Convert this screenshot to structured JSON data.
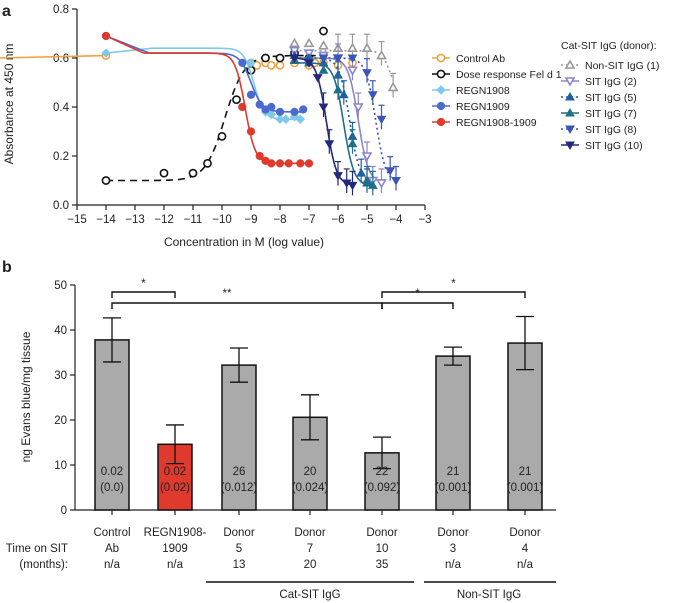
{
  "chart_data": [
    {
      "panel": "a",
      "type": "line",
      "xlabel": "Concentration in M (log value)",
      "ylabel": "Absorbance at 450 nm",
      "xlim": [
        -15,
        -3
      ],
      "ylim": [
        0,
        0.8
      ],
      "xticks": [
        "−15",
        "−14",
        "−13",
        "−12",
        "−11",
        "−10",
        "−9",
        "−8",
        "−7",
        "−6",
        "−5",
        "−4",
        "−3"
      ],
      "yticks": [
        "0.0",
        "0.2",
        "0.4",
        "0.6",
        "0.8"
      ],
      "legend_left": [
        "Control Ab",
        "Dose response Fel d 1",
        "REGN1908",
        "REGN1909",
        "REGN1908-1909"
      ],
      "legend_right_title": "Cat-SIT IgG (donor):",
      "legend_right": [
        "Non-SIT IgG (1)",
        "SIT IgG (2)",
        "SIT IgG (5)",
        "SIT IgG (7)",
        "SIT IgG (8)",
        "SIT IgG (10)"
      ],
      "series": [
        {
          "name": "Control Ab",
          "color": "#f0a040",
          "marker": "circle-open",
          "line": "solid",
          "x": [
            -14,
            -9,
            -8.8,
            -8.5,
            -8.3,
            -8,
            -7.5,
            -7,
            -6.8,
            -6.5,
            -6,
            -5.5
          ],
          "y": [
            0.61,
            0.58,
            0.57,
            0.58,
            0.57,
            0.57,
            0.58,
            0.57,
            0.58,
            0.58,
            0.57,
            0.58
          ],
          "fit": "flat",
          "fitlevel": 0.6
        },
        {
          "name": "Dose response Fel d 1",
          "color": "#111111",
          "marker": "circle-open",
          "line": "dashed",
          "x": [
            -14,
            -12,
            -11,
            -10.5,
            -10,
            -9.5,
            -9,
            -8.5,
            -8,
            -7.5,
            -7,
            -6.5
          ],
          "y": [
            0.1,
            0.13,
            0.13,
            0.17,
            0.28,
            0.43,
            0.55,
            0.6,
            0.6,
            0.62,
            0.6,
            0.71
          ],
          "fit": "rise",
          "bottom": 0.1,
          "top": 0.61,
          "ec50": -9.9,
          "hill": 1.3
        },
        {
          "name": "REGN1908",
          "color": "#7fc8ec",
          "marker": "diamond",
          "line": "solid",
          "x": [
            -14,
            -9,
            -8.5,
            -8.3,
            -8,
            -7.8,
            -7.5,
            -7.3
          ],
          "y": [
            0.62,
            0.58,
            0.38,
            0.37,
            0.35,
            0.35,
            0.36,
            0.35
          ],
          "fit": "drop",
          "top": 0.64,
          "bottom": 0.35,
          "ec50": -8.9,
          "hill": 2.5
        },
        {
          "name": "REGN1909",
          "color": "#4a6ad0",
          "marker": "circle",
          "line": "solid",
          "x": [
            -14,
            -9.3,
            -9,
            -8.7,
            -8.5,
            -8.3,
            -8,
            -7.5,
            -7.2
          ],
          "y": [
            0.69,
            0.58,
            0.45,
            0.41,
            0.39,
            0.4,
            0.38,
            0.38,
            0.39
          ],
          "fit": "drop",
          "top": 0.62,
          "bottom": 0.38,
          "ec50": -9.0,
          "hill": 2.2
        },
        {
          "name": "REGN1908-1909",
          "color": "#e03a2e",
          "marker": "circle",
          "line": "solid",
          "x": [
            -14,
            -9.3,
            -9,
            -8.7,
            -8.5,
            -8.3,
            -8,
            -7.7,
            -7.3,
            -7
          ],
          "y": [
            0.69,
            0.4,
            0.3,
            0.2,
            0.18,
            0.17,
            0.17,
            0.17,
            0.17,
            0.17
          ],
          "fit": "drop",
          "top": 0.62,
          "bottom": 0.17,
          "ec50": -9.2,
          "hill": 2.5
        },
        {
          "name": "Non-SIT IgG (1)",
          "color": "#999999",
          "marker": "triangle-open",
          "line": "dotted",
          "x": [
            -7.5,
            -7,
            -6.5,
            -6,
            -5.5,
            -5,
            -4.5,
            -4.1
          ],
          "y": [
            0.66,
            0.66,
            0.65,
            0.64,
            0.64,
            0.64,
            0.61,
            0.48
          ],
          "fit": "drop",
          "top": 0.63,
          "bottom": 0.45,
          "ec50": -4.2,
          "hill": 3
        },
        {
          "name": "SIT IgG (2)",
          "color": "#8a85cc",
          "marker": "triangle-down-open",
          "line": "solid",
          "x": [
            -7.5,
            -7,
            -6.5,
            -6,
            -5.5,
            -5.3,
            -5,
            -4.8,
            -4.5
          ],
          "y": [
            0.63,
            0.62,
            0.61,
            0.6,
            0.55,
            0.4,
            0.2,
            0.1,
            0.09
          ],
          "fit": "drop",
          "top": 0.6,
          "bottom": 0.09,
          "ec50": -5.3,
          "hill": 2.5
        },
        {
          "name": "SIT IgG (5)",
          "color": "#1f5fa6",
          "marker": "triangle",
          "line": "dotted",
          "x": [
            -7.5,
            -7,
            -6.5,
            -6,
            -5.8,
            -5.5,
            -5.2,
            -5
          ],
          "y": [
            0.61,
            0.6,
            0.58,
            0.53,
            0.45,
            0.28,
            0.13,
            0.09
          ],
          "fit": "drop",
          "top": 0.6,
          "bottom": 0.09,
          "ec50": -5.6,
          "hill": 2.5
        },
        {
          "name": "SIT IgG (7)",
          "color": "#1f6f8a",
          "marker": "triangle",
          "line": "solid",
          "x": [
            -7.5,
            -7,
            -6.5,
            -6,
            -5.5,
            -5,
            -4.8
          ],
          "y": [
            0.59,
            0.58,
            0.55,
            0.47,
            0.25,
            0.1,
            0.08
          ],
          "fit": "drop",
          "top": 0.58,
          "bottom": 0.08,
          "ec50": -5.8,
          "hill": 2.5
        },
        {
          "name": "SIT IgG (8)",
          "color": "#3a55b8",
          "marker": "triangle-down",
          "line": "dotted",
          "x": [
            -6.5,
            -6,
            -5.5,
            -5,
            -4.8,
            -4.5,
            -4.2,
            -4
          ],
          "y": [
            0.6,
            0.6,
            0.6,
            0.54,
            0.45,
            0.35,
            0.14,
            0.1
          ],
          "fit": "drop",
          "top": 0.6,
          "bottom": 0.09,
          "ec50": -4.7,
          "hill": 2.5
        },
        {
          "name": "SIT IgG (10)",
          "color": "#23287a",
          "marker": "triangle-down",
          "line": "solid",
          "x": [
            -7.5,
            -7,
            -6.7,
            -6.5,
            -6.3,
            -6,
            -5.7,
            -5.5
          ],
          "y": [
            0.6,
            0.58,
            0.52,
            0.4,
            0.25,
            0.12,
            0.09,
            0.08
          ],
          "fit": "drop",
          "top": 0.6,
          "bottom": 0.08,
          "ec50": -6.4,
          "hill": 2.5
        }
      ]
    },
    {
      "panel": "b",
      "type": "bar",
      "ylabel": "ng Evans blue/mg tissue",
      "ylim": [
        0,
        50
      ],
      "yticks": [
        "0",
        "10",
        "20",
        "30",
        "40",
        "50"
      ],
      "categories": [
        {
          "line1": "Control",
          "line2": "Ab",
          "time": "n/a",
          "color": "#aaaaaa"
        },
        {
          "line1": "REGN1908-",
          "line2": "1909",
          "time": "n/a",
          "color": "#e03a2e"
        },
        {
          "line1": "Donor",
          "line2": "5",
          "time": "13",
          "color": "#aaaaaa"
        },
        {
          "line1": "Donor",
          "line2": "7",
          "time": "20",
          "color": "#aaaaaa"
        },
        {
          "line1": "Donor",
          "line2": "10",
          "time": "35",
          "color": "#aaaaaa"
        },
        {
          "line1": "Donor",
          "line2": "3",
          "time": "n/a",
          "color": "#aaaaaa"
        },
        {
          "line1": "Donor",
          "line2": "4",
          "time": "n/a",
          "color": "#aaaaaa"
        }
      ],
      "values": [
        37.8,
        14.6,
        32.2,
        20.6,
        12.7,
        34.2,
        37.1
      ],
      "errors": [
        4.9,
        4.3,
        3.8,
        5.0,
        3.5,
        2.0,
        5.9
      ],
      "bar_labels": [
        [
          "0.02",
          "(0.0)"
        ],
        [
          "0.02",
          "(0.02)"
        ],
        [
          "26",
          "(0.012)"
        ],
        [
          "20",
          "(0.024)"
        ],
        [
          "22",
          "(0.092)"
        ],
        [
          "21",
          "(0.001)"
        ],
        [
          "21",
          "(0.001)"
        ]
      ],
      "row_label_1": "Time on SIT",
      "row_label_2": "(months):",
      "group_labels": [
        "Cat-SIT IgG",
        "Non-SIT IgG"
      ],
      "significance": [
        {
          "from": 0,
          "to": 1,
          "label": "*"
        },
        {
          "from": 0,
          "to": 4,
          "label": "**"
        },
        {
          "from": 4,
          "to": 5,
          "label": "*"
        },
        {
          "from": 4,
          "to": 6,
          "label": "*"
        }
      ]
    }
  ],
  "panel_letters": [
    "a",
    "b"
  ]
}
